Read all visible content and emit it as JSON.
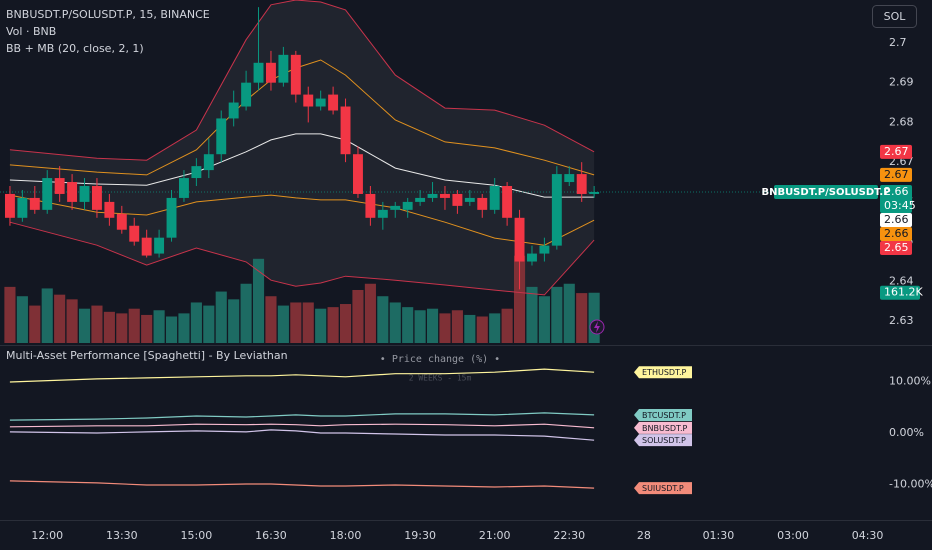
{
  "ui": {
    "symbol_button": "SOL"
  },
  "chart_data": [
    {
      "type": "candlestick",
      "title": "BNBUSDT.P/SOLUSDT.P, 15, BINANCE",
      "indicator_labels": [
        "Vol · BNB",
        "BB + MB (20, close, 2, 1)"
      ],
      "up_color": "#089981",
      "down_color": "#f23645",
      "x": [
        675,
        690,
        705,
        720,
        735,
        750,
        765,
        780,
        795,
        810,
        825,
        840,
        855,
        870,
        885,
        900,
        915,
        930,
        945,
        960,
        975,
        990,
        1005,
        1020,
        1035,
        1050,
        1065,
        1080,
        1095,
        1110,
        1125,
        1140,
        1155,
        1170,
        1185,
        1200,
        1215,
        1230,
        1245,
        1260,
        1275,
        1290,
        1305,
        1320,
        1335,
        1350,
        1365,
        1380
      ],
      "open": [
        2.662,
        2.656,
        2.661,
        2.658,
        2.666,
        2.665,
        2.66,
        2.664,
        2.66,
        2.657,
        2.654,
        2.651,
        2.647,
        2.651,
        2.661,
        2.666,
        2.668,
        2.672,
        2.681,
        2.684,
        2.69,
        2.695,
        2.69,
        2.697,
        2.687,
        2.684,
        2.687,
        2.684,
        2.672,
        2.662,
        2.656,
        2.658,
        2.658,
        2.66,
        2.661,
        2.662,
        2.662,
        2.66,
        2.661,
        2.658,
        2.664,
        2.656,
        2.645,
        2.647,
        2.649,
        2.665,
        2.667,
        2.662
      ],
      "high": [
        2.664,
        2.663,
        2.664,
        2.668,
        2.669,
        2.667,
        2.666,
        2.666,
        2.662,
        2.659,
        2.656,
        2.653,
        2.653,
        2.663,
        2.668,
        2.671,
        2.676,
        2.683,
        2.688,
        2.693,
        2.709,
        2.698,
        2.699,
        2.698,
        2.689,
        2.688,
        2.689,
        2.686,
        2.674,
        2.664,
        2.66,
        2.66,
        2.661,
        2.663,
        2.665,
        2.664,
        2.663,
        2.663,
        2.662,
        2.666,
        2.665,
        2.658,
        2.649,
        2.651,
        2.669,
        2.669,
        2.67,
        2.664
      ],
      "low": [
        2.654,
        2.655,
        2.657,
        2.657,
        2.66,
        2.658,
        2.658,
        2.656,
        2.654,
        2.652,
        2.649,
        2.646,
        2.646,
        2.65,
        2.66,
        2.664,
        2.666,
        2.67,
        2.679,
        2.683,
        2.688,
        2.688,
        2.689,
        2.685,
        2.68,
        2.683,
        2.682,
        2.67,
        2.661,
        2.654,
        2.653,
        2.656,
        2.656,
        2.659,
        2.66,
        2.658,
        2.657,
        2.659,
        2.656,
        2.657,
        2.654,
        2.638,
        2.644,
        2.645,
        2.648,
        2.664,
        2.66,
        2.661
      ],
      "close": [
        2.656,
        2.661,
        2.658,
        2.666,
        2.662,
        2.66,
        2.664,
        2.658,
        2.656,
        2.653,
        2.65,
        2.6465,
        2.651,
        2.661,
        2.666,
        2.669,
        2.672,
        2.681,
        2.685,
        2.69,
        2.695,
        2.69,
        2.697,
        2.687,
        2.684,
        2.686,
        2.683,
        2.672,
        2.662,
        2.656,
        2.658,
        2.659,
        2.66,
        2.661,
        2.662,
        2.661,
        2.659,
        2.661,
        2.658,
        2.664,
        2.656,
        2.645,
        2.647,
        2.649,
        2.667,
        2.667,
        2.662,
        2.6625
      ],
      "symbol_label": "BNBUSDT.P/SOLUSDT.P",
      "last_price_label": "2.66",
      "countdown": "03:45",
      "volume": {
        "up_color": "#1d6b63",
        "down_color": "#7f3036",
        "ylim": [
          0,
          1100000
        ],
        "last_value_label": "161.2K",
        "values": [
          180000,
          150000,
          120000,
          175000,
          155000,
          140000,
          110000,
          120000,
          100000,
          95000,
          110000,
          90000,
          105000,
          85000,
          95000,
          130000,
          120000,
          165000,
          140000,
          190000,
          270000,
          150000,
          120000,
          130000,
          130000,
          110000,
          115000,
          125000,
          170000,
          190000,
          150000,
          130000,
          115000,
          105000,
          110000,
          95000,
          105000,
          90000,
          85000,
          95000,
          110000,
          280000,
          180000,
          150000,
          180000,
          190000,
          160000,
          161200
        ]
      },
      "band_fill": "rgba(120,123,134,0.13)",
      "bands": [
        {
          "color": "#c8334b",
          "x": [
            675,
            780,
            840,
            900,
            960,
            990,
            1020,
            1050,
            1080,
            1140,
            1200,
            1260,
            1320,
            1380
          ],
          "values": [
            2.6731,
            2.671,
            2.6705,
            2.6781,
            2.7008,
            2.7096,
            2.7108,
            2.7103,
            2.7083,
            2.6919,
            2.6836,
            2.6831,
            2.6793,
            2.6726
          ],
          "last_value_label": "2.67",
          "label_color": "#f23645",
          "label_text_color": "#ffffff"
        },
        {
          "color": "#e0911f",
          "x": [
            675,
            780,
            840,
            900,
            960,
            990,
            1020,
            1050,
            1080,
            1140,
            1200,
            1260,
            1320,
            1380
          ],
          "values": [
            2.6693,
            2.6675,
            2.6668,
            2.6731,
            2.6856,
            2.6907,
            2.6937,
            2.6957,
            2.6919,
            2.6806,
            2.6751,
            2.6736,
            2.6705,
            2.6668
          ],
          "last_value_label": "2.67",
          "label_color": "#f7920f",
          "label_text_color": "#131722"
        },
        {
          "color": "#e8e8e8",
          "x": [
            675,
            780,
            840,
            900,
            960,
            990,
            1020,
            1050,
            1080,
            1140,
            1200,
            1260,
            1320,
            1380
          ],
          "values": [
            2.6655,
            2.6645,
            2.6642,
            2.6675,
            2.6726,
            2.6756,
            2.6771,
            2.6771,
            2.6756,
            2.6685,
            2.6655,
            2.6642,
            2.6612,
            2.6612
          ],
          "last_value_label": "2.66",
          "label_color": "#ffffff",
          "label_text_color": "#131722"
        },
        {
          "color": "#e0911f",
          "x": [
            675,
            780,
            840,
            900,
            960,
            990,
            1020,
            1050,
            1080,
            1140,
            1200,
            1260,
            1320,
            1380
          ],
          "values": [
            2.6617,
            2.6574,
            2.6567,
            2.66,
            2.6612,
            2.6617,
            2.661,
            2.6605,
            2.6605,
            2.6585,
            2.6549,
            2.6509,
            2.6491,
            2.6554
          ],
          "last_value_label": "2.66",
          "label_color": "#f7920f",
          "label_text_color": "#131722"
        },
        {
          "color": "#c8334b",
          "x": [
            675,
            780,
            840,
            900,
            960,
            990,
            1020,
            1050,
            1080,
            1140,
            1200,
            1260,
            1320,
            1380
          ],
          "values": [
            2.6549,
            2.6491,
            2.6441,
            2.6484,
            2.6449,
            2.6403,
            2.6388,
            2.6396,
            2.6413,
            2.6403,
            2.6391,
            2.6378,
            2.6366,
            2.6504
          ],
          "last_value_label": "2.65",
          "label_color": "#f23645",
          "label_text_color": "#ffffff"
        }
      ],
      "xlim": [
        663,
        1725
      ],
      "xticks": [
        {
          "value": 720,
          "label": "12:00"
        },
        {
          "value": 810,
          "label": "13:30"
        },
        {
          "value": 900,
          "label": "15:00"
        },
        {
          "value": 990,
          "label": "16:30"
        },
        {
          "value": 1080,
          "label": "18:00"
        },
        {
          "value": 1170,
          "label": "19:30"
        },
        {
          "value": 1260,
          "label": "21:00"
        },
        {
          "value": 1350,
          "label": "22:30"
        },
        {
          "value": 1440,
          "label": "28"
        },
        {
          "value": 1530,
          "label": "01:30"
        },
        {
          "value": 1620,
          "label": "03:00"
        },
        {
          "value": 1710,
          "label": "04:30"
        }
      ],
      "ylim": [
        2.6245,
        2.7108
      ],
      "yticks": [
        2.63,
        2.64,
        2.65,
        2.66,
        2.67,
        2.68,
        2.69,
        2.7
      ]
    },
    {
      "type": "line",
      "title": "Multi-Asset Performance [Spaghetti] - By Leviathan",
      "subtitle": "• Price change (%) •",
      "annotation": "2 WEEKS - 15m",
      "xlim": [
        663,
        1725
      ],
      "ylim": [
        -16.9,
        16.5
      ],
      "yticks": [
        {
          "value": 10,
          "label": "10.00%"
        },
        {
          "value": 0,
          "label": "0.00%"
        },
        {
          "value": -10,
          "label": "-10.00%"
        }
      ],
      "series": [
        {
          "name": "ETHUSDT.P",
          "color": "#fff59d",
          "x": [
            675,
            780,
            840,
            900,
            960,
            990,
            1020,
            1050,
            1080,
            1140,
            1200,
            1260,
            1320,
            1380
          ],
          "values": [
            9.9,
            10.5,
            10.7,
            10.9,
            11.1,
            11.1,
            11.3,
            11.1,
            10.9,
            11.5,
            11.5,
            11.8,
            12.4,
            11.8
          ]
        },
        {
          "name": "BTCUSDT.P",
          "color": "#80cbc4",
          "x": [
            675,
            780,
            840,
            900,
            960,
            990,
            1020,
            1050,
            1080,
            1140,
            1200,
            1260,
            1320,
            1380
          ],
          "values": [
            2.5,
            2.7,
            2.9,
            3.3,
            3.1,
            3.3,
            3.5,
            3.3,
            3.3,
            3.7,
            3.7,
            3.5,
            3.9,
            3.5
          ]
        },
        {
          "name": "BNBUSDT.P",
          "color": "#f8bbd0",
          "x": [
            675,
            780,
            840,
            900,
            960,
            990,
            1020,
            1050,
            1080,
            1140,
            1200,
            1260,
            1320,
            1380
          ],
          "values": [
            1.2,
            1.4,
            1.4,
            1.7,
            1.6,
            1.7,
            1.6,
            1.4,
            1.6,
            1.7,
            1.6,
            1.4,
            1.7,
            1.0
          ]
        },
        {
          "name": "SOLUSDT.P",
          "color": "#d1c4e9",
          "x": [
            675,
            780,
            840,
            900,
            960,
            990,
            1020,
            1050,
            1080,
            1140,
            1200,
            1260,
            1320,
            1380
          ],
          "values": [
            0.2,
            0.0,
            0.2,
            0.4,
            0.2,
            0.6,
            0.4,
            0.0,
            0.0,
            -0.2,
            -0.4,
            -0.4,
            -0.6,
            -1.4
          ]
        },
        {
          "name": "SUIUSDT.P",
          "color": "#f28b7a",
          "x": [
            675,
            780,
            840,
            900,
            960,
            990,
            1020,
            1050,
            1080,
            1140,
            1200,
            1260,
            1320,
            1380
          ],
          "values": [
            -9.3,
            -9.7,
            -10.1,
            -10.1,
            -9.9,
            -9.9,
            -10.1,
            -10.3,
            -10.3,
            -10.1,
            -10.3,
            -10.5,
            -10.3,
            -10.7
          ]
        }
      ]
    }
  ]
}
